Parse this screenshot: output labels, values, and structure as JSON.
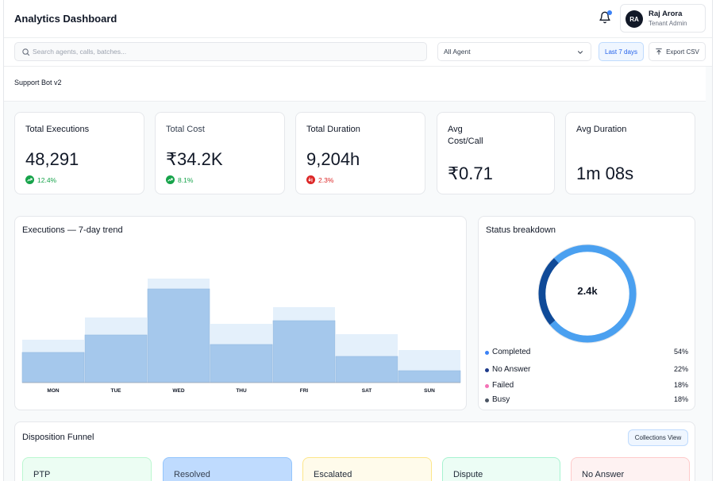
{
  "header": {
    "title": "Analytics Dashboard",
    "user": {
      "initials": "RA",
      "name": "Raj Arora",
      "role": "Tenant Admin"
    }
  },
  "filters": {
    "search_placeholder": "Search agents, calls, batches...",
    "agent_select": "All Agent",
    "date_range": "Last 7 days",
    "export_label": "Export CSV"
  },
  "subheader": {
    "title": "Support Bot v2"
  },
  "metrics": [
    {
      "label": "Total Executions",
      "value": "48,291",
      "trend": "12.4%",
      "direction": "up"
    },
    {
      "label": "Total Cost",
      "value": "₹34.2K",
      "trend": "8.1%",
      "direction": "up"
    },
    {
      "label": "Total Duration",
      "value": "9,204h",
      "trend": "2.3%",
      "direction": "down"
    },
    {
      "label": "Avg Cost/Call",
      "value": "₹0.71"
    },
    {
      "label": "Avg Duration",
      "value": "1m 08s"
    }
  ],
  "trend_panel": {
    "title": "Executions — 7-day trend"
  },
  "status_panel": {
    "title": "Status breakdown",
    "center_value": "2.4k",
    "items": [
      {
        "name": "Completed",
        "pct": "54%",
        "color": "#3b82f6"
      },
      {
        "name": "No Answer",
        "pct": "22%",
        "color": "#1e3a8a"
      },
      {
        "name": "Failed",
        "pct": "18%",
        "color": "#f472b6"
      },
      {
        "name": "Busy",
        "pct": "18%",
        "color": "#4b5563"
      }
    ]
  },
  "funnel": {
    "title": "Disposition Funnel",
    "view_button": "Collections View",
    "stages": [
      {
        "label": "PTP",
        "bg": "#ecfdf3",
        "border": "#bbf7d0"
      },
      {
        "label": "Resolved",
        "bg": "#bfdbfe",
        "border": "#93c5fd"
      },
      {
        "label": "Escalated",
        "bg": "#fffbeb",
        "border": "#fde68a"
      },
      {
        "label": "Dispute",
        "bg": "#ecfdf5",
        "border": "#a7f3d0"
      },
      {
        "label": "No Answer",
        "bg": "#fef2f2",
        "border": "#fecaca"
      }
    ]
  },
  "chart_data": [
    {
      "type": "bar",
      "categories": [
        "MON",
        "TUE",
        "WED",
        "THU",
        "FRI",
        "SAT",
        "SUN"
      ],
      "series": [
        {
          "values": [
            38,
            60,
            118,
            48,
            78,
            33,
            15
          ],
          "color": "#a5c8ec"
        },
        {
          "values": [
            54,
            82,
            131,
            74,
            95,
            61,
            41
          ],
          "color": "#e4f0fb"
        }
      ],
      "ylim": [
        0,
        135
      ],
      "grid": false,
      "legend": "none"
    },
    {
      "type": "pie",
      "categories": [
        "Completed",
        "No Answer",
        "Failed",
        "Busy"
      ],
      "values": [
        54,
        22,
        18,
        18
      ],
      "center_label": "2.4k"
    }
  ]
}
